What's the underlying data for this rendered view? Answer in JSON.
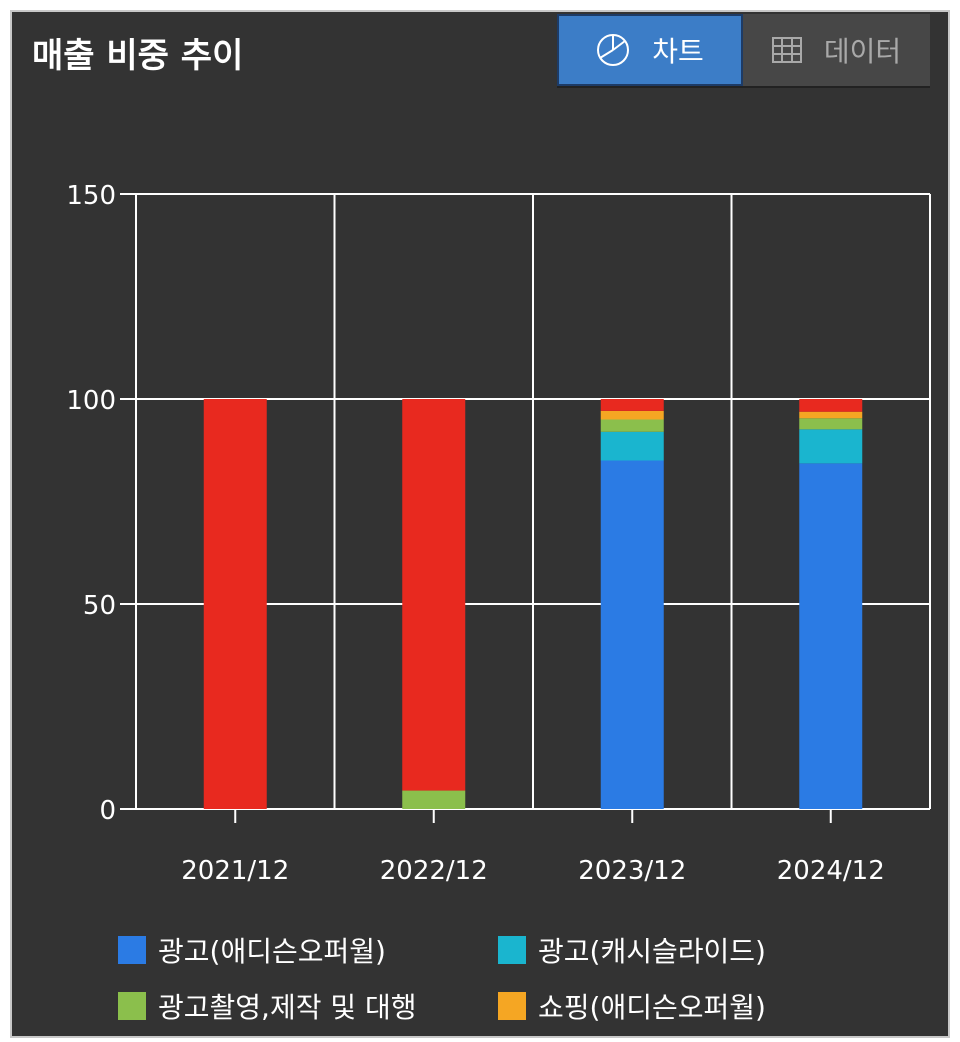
{
  "header": {
    "title": "매출 비중 추이"
  },
  "view_toggle": {
    "chart_label": "차트",
    "data_label": "데이터",
    "chart_icon": "pie-chart-icon",
    "data_icon": "table-grid-icon",
    "active": "chart",
    "active_color": "#3c7dc7"
  },
  "chart_data": {
    "type": "bar",
    "stacked": true,
    "categories": [
      "2021/12",
      "2022/12",
      "2023/12",
      "2024/12"
    ],
    "ylim": [
      0,
      150
    ],
    "yticks": [
      0,
      50,
      100,
      150
    ],
    "grid": true,
    "legend_position": "bottom",
    "series": [
      {
        "name": "광고(애디슨오퍼월)",
        "color": "#2b7be4",
        "values": [
          0,
          0,
          85,
          84.3
        ]
      },
      {
        "name": "광고(캐시슬라이드)",
        "color": "#1ab5cf",
        "values": [
          0,
          0,
          7,
          8.3
        ]
      },
      {
        "name": "광고촬영,제작 및 대행",
        "color": "#8bbf4c",
        "values": [
          0,
          4.5,
          3,
          2.7
        ]
      },
      {
        "name": "쇼핑(애디슨오퍼월)",
        "color": "#f5a623",
        "values": [
          0,
          0,
          2.1,
          1.6
        ]
      },
      {
        "name": "",
        "color": "#e8291f",
        "values": [
          100,
          95.5,
          2.9,
          3.1
        ]
      }
    ]
  }
}
